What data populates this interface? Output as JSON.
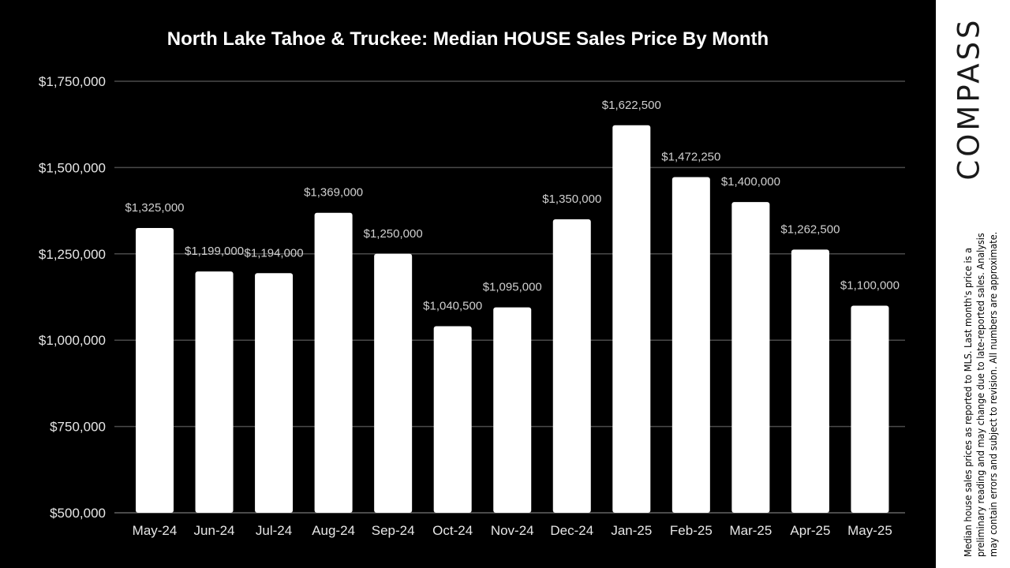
{
  "brand": {
    "logo_text": "COMPASS",
    "disclaimer": "Median house sales prices as reported to MLS. Last month's price is a preliminary reading and may change due to late-reported sales. Analysis may contain errors and subject to revision. All numbers are approximate."
  },
  "colors": {
    "background": "#000000",
    "bar": "#ffffff",
    "gridline": "#4a4a4a",
    "text": "#e6e6e6",
    "data_label": "#d0d0d0"
  },
  "chart_data": {
    "type": "bar",
    "title": "North Lake Tahoe & Truckee: Median HOUSE Sales Price By Month",
    "xlabel": "",
    "ylabel": "",
    "categories": [
      "May-24",
      "Jun-24",
      "Jul-24",
      "Aug-24",
      "Sep-24",
      "Oct-24",
      "Nov-24",
      "Dec-24",
      "Jan-25",
      "Feb-25",
      "Mar-25",
      "Apr-25",
      "May-25"
    ],
    "values": [
      1325000,
      1199000,
      1194000,
      1369000,
      1250000,
      1040500,
      1095000,
      1350000,
      1622500,
      1472250,
      1400000,
      1262500,
      1100000
    ],
    "data_labels": [
      "$1,325,000",
      "$1,199,000",
      "$1,194,000",
      "$1,369,000",
      "$1,250,000",
      "$1,040,500",
      "$1,095,000",
      "$1,350,000",
      "$1,622,500",
      "$1,472,250",
      "$1,400,000",
      "$1,262,500",
      "$1,100,000"
    ],
    "ylim": [
      500000,
      1750000
    ],
    "yticks": [
      500000,
      750000,
      1000000,
      1250000,
      1500000,
      1750000
    ],
    "ytick_labels": [
      "$500,000",
      "$750,000",
      "$1,000,000",
      "$1,250,000",
      "$1,500,000",
      "$1,750,000"
    ],
    "grid": true,
    "legend": "none"
  }
}
